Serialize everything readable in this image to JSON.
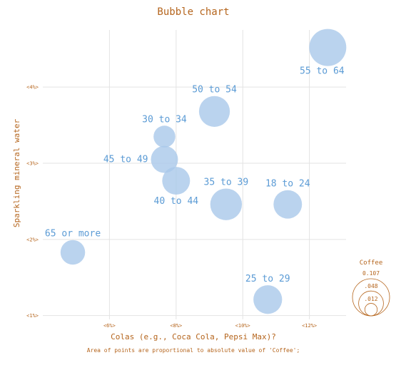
{
  "chart_data": {
    "type": "bubble",
    "title": "Bubble chart",
    "xlabel": "Colas (e.g., Coca Cola, Pepsi Max)?",
    "ylabel": "Sparkling mineral water",
    "caption": "Area of points are proportional to absolute value of 'Coffee';",
    "xlim": [
      0.04,
      0.131
    ],
    "ylim": [
      0.0095,
      0.0475
    ],
    "x_ticks": [
      {
        "value": 0.06,
        "label": "<6%>"
      },
      {
        "value": 0.08,
        "label": "<8%>"
      },
      {
        "value": 0.1,
        "label": "<10%>"
      },
      {
        "value": 0.12,
        "label": "<12%>"
      }
    ],
    "y_ticks": [
      {
        "value": 0.01,
        "label": "<1%>"
      },
      {
        "value": 0.02,
        "label": "<2%>"
      },
      {
        "value": 0.03,
        "label": "<3%>"
      },
      {
        "value": 0.04,
        "label": "<4%>"
      }
    ],
    "size_legend": {
      "title": "Coffee",
      "values": [
        0.107,
        0.048,
        0.012
      ],
      "labels": [
        "0.107",
        ".048",
        ".012"
      ]
    },
    "colors": {
      "bubble": "#a9c8ea",
      "point_label": "#5b9bd5",
      "axis_text": "#b5651d",
      "grid": "#e3e3e3"
    },
    "points": [
      {
        "label": "55 to 64",
        "x": 0.1255,
        "y": 0.0452,
        "coffee": 0.107,
        "label_pos": "below-left"
      },
      {
        "label": "50 to 54",
        "x": 0.0915,
        "y": 0.0368,
        "coffee": 0.074,
        "label_pos": "above"
      },
      {
        "label": "30 to 34",
        "x": 0.0765,
        "y": 0.0335,
        "coffee": 0.037,
        "label_pos": "above"
      },
      {
        "label": "45 to 49",
        "x": 0.0765,
        "y": 0.0305,
        "coffee": 0.057,
        "label_pos": "below-left"
      },
      {
        "label": "40 to 44",
        "x": 0.08,
        "y": 0.0277,
        "coffee": 0.06,
        "label_pos": "below"
      },
      {
        "label": "35 to 39",
        "x": 0.095,
        "y": 0.0246,
        "coffee": 0.078,
        "label_pos": "above"
      },
      {
        "label": "18 to 24",
        "x": 0.1135,
        "y": 0.0246,
        "coffee": 0.063,
        "label_pos": "above"
      },
      {
        "label": "65 or more",
        "x": 0.049,
        "y": 0.0183,
        "coffee": 0.047,
        "label_pos": "above"
      },
      {
        "label": "25 to 29",
        "x": 0.1075,
        "y": 0.0121,
        "coffee": 0.064,
        "label_pos": "above"
      }
    ]
  }
}
